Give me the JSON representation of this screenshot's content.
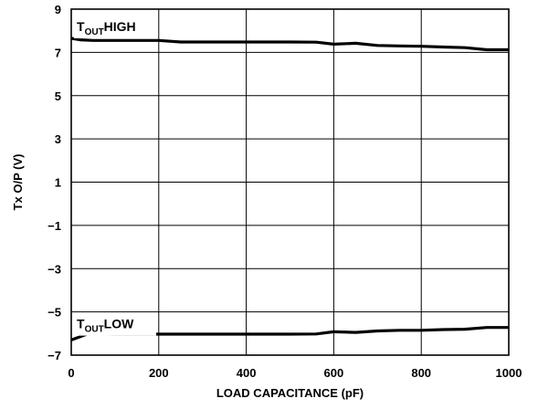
{
  "chart_data": {
    "type": "line",
    "title": "",
    "xlabel": "LOAD CAPACITANCE (pF)",
    "ylabel": "Tx O/P (V)",
    "xlim": [
      0,
      1000
    ],
    "ylim": [
      -7,
      9
    ],
    "grid": true,
    "x_ticks": [
      "0",
      "200",
      "400",
      "600",
      "800",
      "1000"
    ],
    "y_ticks": [
      "9",
      "7",
      "5",
      "3",
      "1",
      "−1",
      "−3",
      "−5",
      "−7"
    ],
    "series": [
      {
        "name": "HIGH",
        "label": {
          "main": "T",
          "sub": "OUT",
          "suffix": "HIGH"
        },
        "points": [
          [
            0,
            7.65
          ],
          [
            20,
            7.58
          ],
          [
            50,
            7.55
          ],
          [
            100,
            7.55
          ],
          [
            150,
            7.55
          ],
          [
            200,
            7.55
          ],
          [
            250,
            7.48
          ],
          [
            300,
            7.48
          ],
          [
            350,
            7.48
          ],
          [
            400,
            7.48
          ],
          [
            450,
            7.48
          ],
          [
            500,
            7.48
          ],
          [
            560,
            7.47
          ],
          [
            600,
            7.38
          ],
          [
            650,
            7.42
          ],
          [
            700,
            7.32
          ],
          [
            750,
            7.3
          ],
          [
            800,
            7.28
          ],
          [
            850,
            7.25
          ],
          [
            900,
            7.22
          ],
          [
            950,
            7.12
          ],
          [
            1000,
            7.12
          ]
        ]
      },
      {
        "name": "LOW",
        "label": {
          "main": "T",
          "sub": "OUT",
          "suffix": "LOW"
        },
        "points": [
          [
            0,
            -6.3
          ],
          [
            20,
            -6.15
          ],
          [
            40,
            -6.0
          ],
          [
            60,
            -6.02
          ],
          [
            100,
            -6.03
          ],
          [
            200,
            -6.03
          ],
          [
            300,
            -6.03
          ],
          [
            400,
            -6.03
          ],
          [
            500,
            -6.03
          ],
          [
            560,
            -6.02
          ],
          [
            600,
            -5.92
          ],
          [
            650,
            -5.95
          ],
          [
            700,
            -5.88
          ],
          [
            750,
            -5.85
          ],
          [
            800,
            -5.85
          ],
          [
            850,
            -5.82
          ],
          [
            900,
            -5.8
          ],
          [
            950,
            -5.72
          ],
          [
            1000,
            -5.72
          ]
        ]
      }
    ]
  }
}
